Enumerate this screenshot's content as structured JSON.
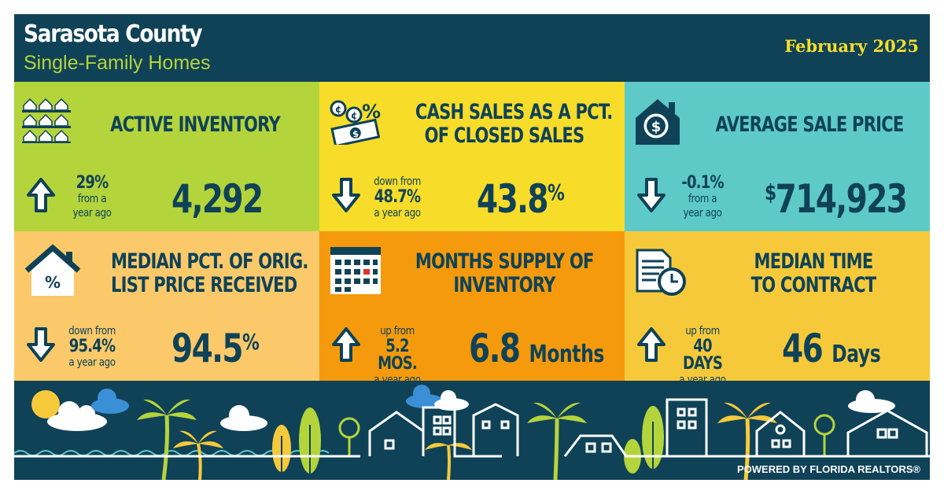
{
  "header": {
    "title": "Sarasota County",
    "subtitle": "Single-Family Homes",
    "date": "February 2025"
  },
  "panels": [
    {
      "title_lines": [
        "ACTIVE INVENTORY"
      ],
      "direction": "up",
      "change_top": "29%",
      "change_mid": "from a",
      "change_bottom": "year ago",
      "value": "4,292",
      "bg": "#b4d43c",
      "icon": "houses-grid-icon"
    },
    {
      "title_lines": [
        "CASH SALES AS A PCT.",
        "OF CLOSED SALES"
      ],
      "direction": "down",
      "change_top": "down from",
      "change_mid": "48.7%",
      "change_bottom": "a year ago",
      "value": "43.8",
      "value_suffix": "%",
      "bg": "#f7dc2a",
      "icon": "cash-percent-icon"
    },
    {
      "title_lines": [
        "AVERAGE SALE PRICE"
      ],
      "direction": "down",
      "change_top": "-0.1%",
      "change_mid": "from a",
      "change_bottom": "year ago",
      "value_prefix": "$",
      "value": "714,923",
      "bg": "#5ecac8",
      "icon": "house-dollar-icon"
    },
    {
      "title_lines": [
        "MEDIAN PCT. OF ORIG.",
        "LIST PRICE RECEIVED"
      ],
      "direction": "down",
      "change_top": "down from",
      "change_mid": "95.4%",
      "change_bottom": "a year ago",
      "value": "94.5",
      "value_suffix": "%",
      "bg": "#fbc96a",
      "icon": "house-percent-icon"
    },
    {
      "title_lines": [
        "MONTHS SUPPLY OF",
        "INVENTORY"
      ],
      "direction": "up",
      "change_top": "up from",
      "change_mid": "5.2 MOS.",
      "change_bottom": "a year ago",
      "value": "6.8",
      "value_unit": "Months",
      "bg": "#f59a0c",
      "icon": "calendar-icon"
    },
    {
      "title_lines": [
        "MEDIAN TIME",
        "TO CONTRACT"
      ],
      "direction": "up",
      "change_top": "up from",
      "change_mid": "40 DAYS",
      "change_bottom": "a year ago",
      "value": "46",
      "value_unit": "Days",
      "bg": "#f6c93b",
      "icon": "document-clock-icon"
    }
  ],
  "footer": {
    "powered_by": "POWERED BY FLORIDA REALTORS®"
  },
  "colors": {
    "navy": "#0f4257",
    "lime": "#b4d43c",
    "yellow": "#f7dc2a",
    "teal": "#5ecac8",
    "peach": "#fbc96a",
    "orange": "#f59a0c",
    "gold": "#f6c93b"
  }
}
